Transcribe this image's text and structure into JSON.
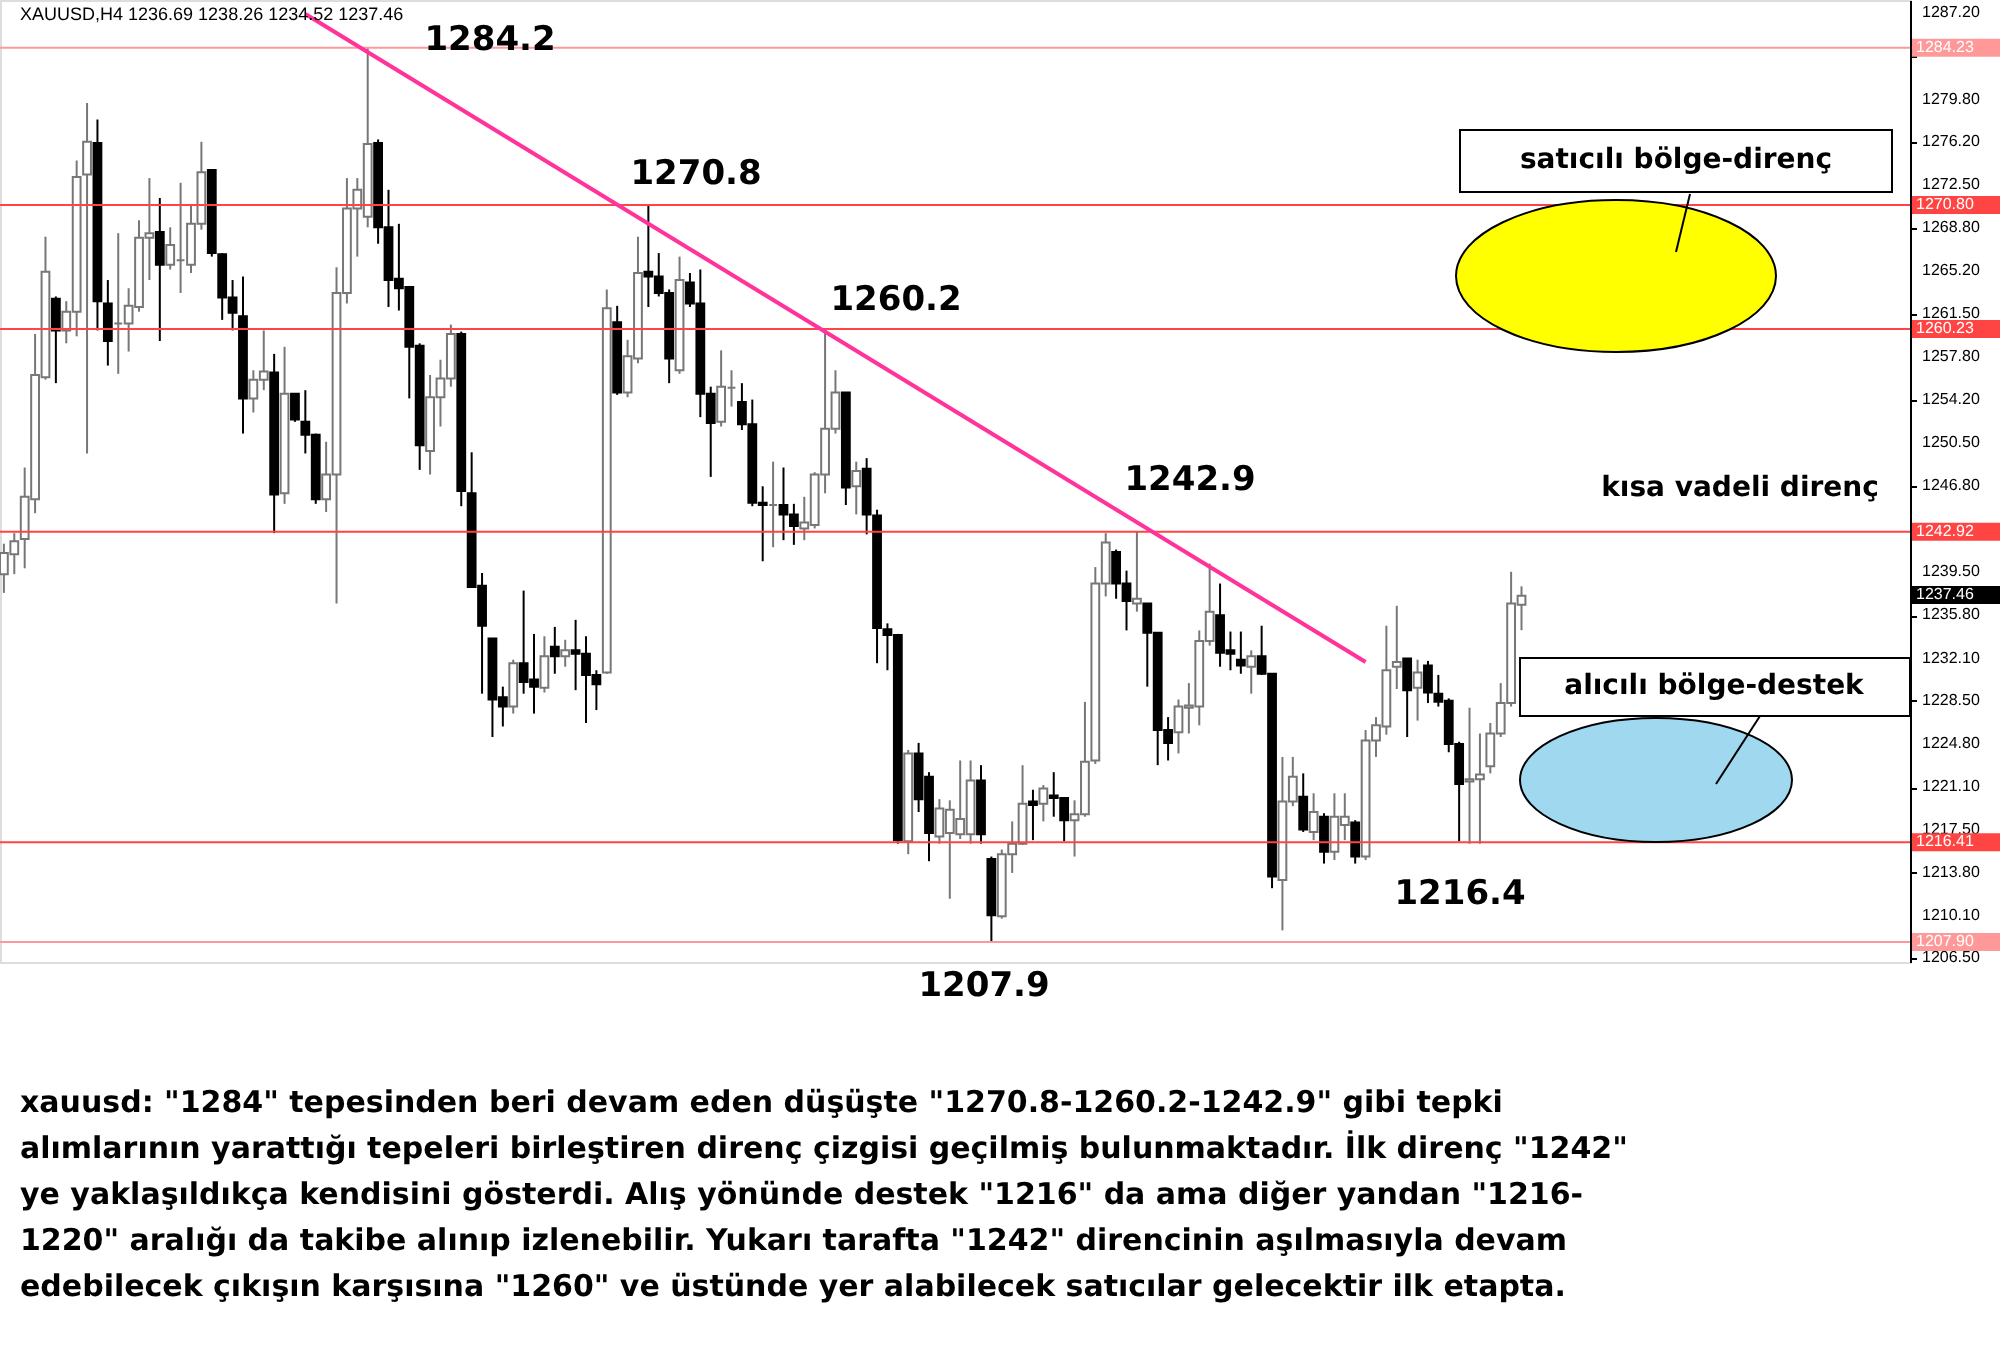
{
  "chart_data": {
    "type": "candlestick",
    "title": "XAUUSD,H4  1236.69 1238.26 1234.52 1237.46",
    "categories": [
      null,
      null,
      null,
      null,
      null,
      null,
      null,
      null,
      null,
      null,
      null,
      null,
      null,
      null,
      null,
      null,
      null,
      null,
      null,
      null,
      null,
      null,
      null,
      null,
      null,
      null,
      null,
      null,
      null,
      null,
      null,
      null,
      null,
      null,
      null,
      null,
      null,
      null,
      null,
      null,
      null,
      null,
      null,
      null,
      null,
      null,
      null,
      null,
      null,
      null,
      null,
      null,
      null,
      null,
      null,
      null,
      null,
      null,
      null,
      null,
      null,
      null,
      null,
      null,
      null,
      null,
      null,
      null,
      null,
      null,
      null,
      null,
      null,
      null,
      null,
      null,
      null,
      null,
      null,
      null,
      null,
      null,
      null,
      null,
      null,
      null,
      null,
      null,
      null,
      null,
      null,
      null,
      null,
      null,
      null,
      null,
      null,
      null,
      null,
      null,
      null,
      null,
      null,
      null,
      null,
      null,
      null,
      null,
      null,
      null,
      null,
      null,
      null,
      null,
      null,
      null,
      null,
      null,
      null,
      null,
      null,
      null,
      null,
      null,
      null,
      null,
      null,
      null,
      null,
      null,
      null,
      null,
      null,
      null,
      null,
      null,
      null,
      null,
      null,
      null,
      null,
      null,
      null,
      null,
      null,
      null,
      null,
      null,
      null,
      null,
      null,
      null,
      null,
      null,
      null,
      null,
      null,
      null,
      null,
      null,
      null,
      null,
      null,
      null,
      null,
      null,
      null,
      null,
      null,
      null,
      null,
      null,
      null,
      null,
      null,
      null,
      null,
      null,
      null,
      null,
      null,
      null,
      null,
      null
    ],
    "ohlc": [
      [
        1239.3,
        1241.9,
        1237.7,
        1241.1
      ],
      [
        1241.0,
        1242.8,
        1239.3,
        1242.1
      ],
      [
        1242.3,
        1248.4,
        1239.8,
        1245.9
      ],
      [
        1245.7,
        1259.8,
        1244.5,
        1256.3
      ],
      [
        1256.1,
        1268.1,
        1255.9,
        1265.1
      ],
      [
        1262.8,
        1263.0,
        1255.6,
        1260.1
      ],
      [
        1260.1,
        1262.6,
        1259.0,
        1261.7
      ],
      [
        1261.7,
        1274.6,
        1259.6,
        1273.2
      ],
      [
        1273.4,
        1279.5,
        1249.6,
        1276.2
      ],
      [
        1276.1,
        1278.1,
        1260.1,
        1262.6
      ],
      [
        1262.4,
        1264.4,
        1257.1,
        1259.2
      ],
      [
        1260.7,
        1268.4,
        1256.4,
        1260.7
      ],
      [
        1260.7,
        1263.7,
        1258.3,
        1262.2
      ],
      [
        1262.1,
        1269.5,
        1261.7,
        1268.0
      ],
      [
        1268.0,
        1273.1,
        1264.4,
        1268.4
      ],
      [
        1268.5,
        1271.4,
        1259.2,
        1265.7
      ],
      [
        1265.7,
        1268.9,
        1265.3,
        1267.4
      ],
      [
        1266.1,
        1272.7,
        1263.3,
        1266.1
      ],
      [
        1265.7,
        1270.9,
        1265.0,
        1269.2
      ],
      [
        1269.2,
        1276.2,
        1268.7,
        1273.6
      ],
      [
        1273.8,
        1273.8,
        1266.4,
        1266.7
      ],
      [
        1266.6,
        1266.7,
        1261.0,
        1262.9
      ],
      [
        1262.9,
        1264.4,
        1260.1,
        1261.6
      ],
      [
        1261.3,
        1264.7,
        1251.3,
        1254.3
      ],
      [
        1254.3,
        1256.7,
        1253.1,
        1255.9
      ],
      [
        1255.9,
        1260.1,
        1255.0,
        1256.6
      ],
      [
        1256.5,
        1258.1,
        1242.8,
        1246.1
      ],
      [
        1246.2,
        1258.7,
        1245.3,
        1254.7
      ],
      [
        1254.7,
        1254.7,
        1252.3,
        1252.5
      ],
      [
        1252.3,
        1255.0,
        1249.6,
        1251.2
      ],
      [
        1251.2,
        1251.3,
        1245.3,
        1245.7
      ],
      [
        1245.7,
        1250.6,
        1244.6,
        1247.8
      ],
      [
        1247.8,
        1265.5,
        1236.8,
        1263.3
      ],
      [
        1263.3,
        1273.1,
        1262.4,
        1270.5
      ],
      [
        1270.5,
        1273.1,
        1266.4,
        1272.1
      ],
      [
        1269.8,
        1284.2,
        1268.9,
        1276.0
      ],
      [
        1276.1,
        1276.4,
        1267.5,
        1268.9
      ],
      [
        1268.9,
        1272.1,
        1262.1,
        1264.4
      ],
      [
        1264.5,
        1269.2,
        1261.8,
        1263.7
      ],
      [
        1263.8,
        1263.9,
        1254.3,
        1258.7
      ],
      [
        1258.8,
        1259.0,
        1248.2,
        1250.3
      ],
      [
        1249.8,
        1256.3,
        1247.8,
        1254.4
      ],
      [
        1254.4,
        1257.6,
        1251.9,
        1256.0
      ],
      [
        1256.0,
        1260.6,
        1255.3,
        1259.8
      ],
      [
        1259.8,
        1260.0,
        1245.1,
        1246.4
      ],
      [
        1246.2,
        1249.7,
        1238.2,
        1238.2
      ],
      [
        1238.3,
        1239.4,
        1229.1,
        1234.9
      ],
      [
        1233.8,
        1233.8,
        1225.4,
        1228.6
      ],
      [
        1228.8,
        1229.7,
        1226.3,
        1228.0
      ],
      [
        1228.0,
        1232.0,
        1227.4,
        1231.7
      ],
      [
        1231.7,
        1237.9,
        1229.1,
        1230.1
      ],
      [
        1230.3,
        1234.2,
        1227.4,
        1229.7
      ],
      [
        1229.6,
        1234.0,
        1229.2,
        1232.3
      ],
      [
        1233.1,
        1234.8,
        1230.8,
        1232.3
      ],
      [
        1232.3,
        1233.7,
        1231.4,
        1232.8
      ],
      [
        1232.8,
        1235.4,
        1229.4,
        1232.5
      ],
      [
        1232.5,
        1234.0,
        1226.6,
        1230.7
      ],
      [
        1230.7,
        1231.1,
        1227.7,
        1229.9
      ],
      [
        1230.9,
        1263.6,
        1230.8,
        1262.0
      ],
      [
        1260.8,
        1262.2,
        1254.6,
        1254.8
      ],
      [
        1254.8,
        1259.3,
        1254.4,
        1257.9
      ],
      [
        1257.7,
        1268.1,
        1257.3,
        1265.0
      ],
      [
        1265.1,
        1270.8,
        1262.1,
        1264.7
      ],
      [
        1264.7,
        1266.7,
        1263.0,
        1263.3
      ],
      [
        1263.3,
        1263.6,
        1255.6,
        1257.7
      ],
      [
        1256.7,
        1266.4,
        1256.4,
        1264.4
      ],
      [
        1264.2,
        1265.0,
        1262.1,
        1262.4
      ],
      [
        1262.4,
        1265.3,
        1252.7,
        1254.7
      ],
      [
        1254.7,
        1255.3,
        1247.6,
        1252.2
      ],
      [
        1252.3,
        1258.4,
        1251.9,
        1255.3
      ],
      [
        1255.2,
        1256.7,
        1253.6,
        1255.2
      ],
      [
        1254.0,
        1255.6,
        1251.6,
        1252.1
      ],
      [
        1252.1,
        1254.2,
        1245.1,
        1245.4
      ],
      [
        1245.4,
        1246.8,
        1240.4,
        1245.2
      ],
      [
        1245.2,
        1248.9,
        1241.6,
        1245.2
      ],
      [
        1245.2,
        1248.4,
        1242.2,
        1244.4
      ],
      [
        1244.4,
        1245.3,
        1241.8,
        1243.4
      ],
      [
        1243.2,
        1245.9,
        1242.2,
        1243.7
      ],
      [
        1243.5,
        1248.0,
        1243.2,
        1247.8
      ],
      [
        1247.8,
        1260.2,
        1246.2,
        1251.7
      ],
      [
        1251.7,
        1256.7,
        1251.3,
        1254.8
      ],
      [
        1254.8,
        1254.8,
        1245.2,
        1246.7
      ],
      [
        1246.8,
        1248.9,
        1244.4,
        1248.1
      ],
      [
        1248.3,
        1249.2,
        1242.7,
        1244.4
      ],
      [
        1244.3,
        1244.8,
        1231.7,
        1234.7
      ],
      [
        1234.6,
        1235.1,
        1231.1,
        1234.1
      ],
      [
        1234.1,
        1234.2,
        1216.3,
        1216.6
      ],
      [
        1216.5,
        1224.3,
        1215.4,
        1224.0
      ],
      [
        1224.0,
        1224.9,
        1219.0,
        1220.1
      ],
      [
        1222.0,
        1222.4,
        1214.8,
        1217.2
      ],
      [
        1216.9,
        1220.1,
        1216.3,
        1219.3
      ],
      [
        1217.2,
        1220.0,
        1211.6,
        1219.2
      ],
      [
        1217.1,
        1223.4,
        1216.7,
        1218.4
      ],
      [
        1217.1,
        1223.4,
        1216.3,
        1221.7
      ],
      [
        1221.7,
        1223.0,
        1216.3,
        1217.1
      ],
      [
        1215.0,
        1215.2,
        1207.9,
        1210.2
      ],
      [
        1210.1,
        1215.8,
        1209.9,
        1215.4
      ],
      [
        1215.4,
        1218.2,
        1213.8,
        1216.3
      ],
      [
        1216.3,
        1223.0,
        1216.2,
        1219.7
      ],
      [
        1219.9,
        1220.9,
        1216.6,
        1219.6
      ],
      [
        1219.7,
        1221.3,
        1218.2,
        1221.0
      ],
      [
        1220.4,
        1222.4,
        1218.6,
        1220.2
      ],
      [
        1220.2,
        1220.2,
        1216.5,
        1218.3
      ],
      [
        1218.3,
        1220.0,
        1215.2,
        1218.8
      ],
      [
        1218.8,
        1228.4,
        1218.6,
        1223.3
      ],
      [
        1223.4,
        1239.9,
        1223.1,
        1238.5
      ],
      [
        1238.5,
        1242.8,
        1237.4,
        1242.0
      ],
      [
        1241.2,
        1241.4,
        1237.2,
        1238.5
      ],
      [
        1238.5,
        1239.6,
        1234.5,
        1237.0
      ],
      [
        1236.8,
        1242.9,
        1236.1,
        1237.2
      ],
      [
        1236.8,
        1236.8,
        1229.7,
        1234.3
      ],
      [
        1234.3,
        1234.3,
        1223.0,
        1226.0
      ],
      [
        1226.0,
        1227.1,
        1223.4,
        1224.9
      ],
      [
        1225.8,
        1228.6,
        1224.0,
        1228.0
      ],
      [
        1227.9,
        1230.0,
        1225.7,
        1228.1
      ],
      [
        1228.0,
        1234.5,
        1226.4,
        1233.6
      ],
      [
        1233.6,
        1240.2,
        1233.2,
        1236.1
      ],
      [
        1235.8,
        1238.5,
        1231.4,
        1232.6
      ],
      [
        1232.8,
        1234.4,
        1231.1,
        1232.5
      ],
      [
        1232.0,
        1234.4,
        1230.8,
        1231.5
      ],
      [
        1231.4,
        1232.8,
        1229.1,
        1232.3
      ],
      [
        1232.3,
        1234.9,
        1230.7,
        1230.8
      ],
      [
        1230.8,
        1230.8,
        1212.5,
        1213.5
      ],
      [
        1213.2,
        1223.7,
        1208.9,
        1219.9
      ],
      [
        1219.9,
        1223.7,
        1219.5,
        1222.0
      ],
      [
        1220.3,
        1222.3,
        1217.3,
        1217.5
      ],
      [
        1217.3,
        1220.6,
        1216.6,
        1219.0
      ],
      [
        1218.6,
        1218.9,
        1214.6,
        1215.6
      ],
      [
        1215.6,
        1220.6,
        1214.9,
        1218.6
      ],
      [
        1217.9,
        1220.6,
        1216.6,
        1218.6
      ],
      [
        1218.1,
        1218.3,
        1214.6,
        1215.2
      ],
      [
        1215.2,
        1226.0,
        1214.9,
        1225.1
      ],
      [
        1225.1,
        1227.1,
        1223.7,
        1226.4
      ],
      [
        1226.3,
        1234.9,
        1225.6,
        1231.1
      ],
      [
        1231.4,
        1236.6,
        1229.5,
        1231.8
      ],
      [
        1232.1,
        1232.1,
        1225.4,
        1229.4
      ],
      [
        1229.6,
        1232.0,
        1226.8,
        1230.9
      ],
      [
        1231.5,
        1231.9,
        1228.3,
        1229.2
      ],
      [
        1229.1,
        1230.7,
        1228.0,
        1228.4
      ],
      [
        1228.5,
        1228.7,
        1224.1,
        1224.8
      ],
      [
        1224.8,
        1225.0,
        1216.5,
        1221.4
      ],
      [
        1221.6,
        1227.9,
        1216.3,
        1221.8
      ],
      [
        1221.8,
        1225.7,
        1216.3,
        1222.2
      ],
      [
        1222.9,
        1226.6,
        1222.3,
        1225.7
      ],
      [
        1225.7,
        1230.0,
        1225.4,
        1228.3
      ],
      [
        1228.3,
        1239.5,
        1228.0,
        1236.8
      ],
      [
        1236.69,
        1238.26,
        1234.52,
        1237.46
      ],
      null,
      null,
      null,
      null,
      null,
      null,
      null,
      null,
      null,
      null,
      null,
      null,
      null,
      null,
      null,
      null,
      null,
      null,
      null,
      null,
      null,
      null,
      null,
      null,
      null,
      null,
      null,
      null,
      null,
      null,
      null,
      null,
      null,
      null,
      null,
      null,
      null
    ],
    "series": [
      {
        "type": "line",
        "values": [
          null,
          null,
          null,
          null,
          null,
          null,
          null,
          null,
          null,
          null,
          null,
          null,
          null,
          null,
          null,
          null,
          null,
          null,
          null,
          null,
          null,
          null,
          null,
          null,
          null,
          null,
          null,
          null,
          null,
          1287.1,
          null,
          null,
          null,
          null,
          null,
          null,
          null,
          null,
          null,
          null,
          null,
          null,
          null,
          null,
          null,
          null,
          null,
          null,
          null,
          null,
          null,
          null,
          null,
          null,
          null,
          null,
          null,
          null,
          null,
          null,
          null,
          null,
          null,
          null,
          null,
          null,
          null,
          null,
          null,
          null,
          null,
          null,
          null,
          null,
          null,
          null,
          null,
          null,
          null,
          null,
          null,
          null,
          null,
          null,
          null,
          null,
          null,
          null,
          null,
          null,
          null,
          null,
          null,
          null,
          null,
          null,
          null,
          null,
          null,
          null,
          null,
          null,
          null,
          null,
          null,
          null,
          null,
          null,
          null,
          null,
          null,
          null,
          null,
          null,
          null,
          null,
          null,
          null,
          null,
          null,
          null,
          null,
          null,
          null,
          null,
          null,
          null,
          null,
          null,
          null,
          null,
          1231.8,
          null,
          null,
          null,
          null,
          null,
          null,
          null,
          null,
          null,
          null,
          null,
          null,
          null,
          null,
          null,
          null,
          null,
          null,
          null,
          null,
          null,
          null,
          null,
          null,
          null,
          null,
          null,
          null,
          null,
          null,
          null,
          null,
          null,
          null,
          null,
          null,
          null,
          null,
          null,
          null,
          null,
          null,
          null,
          null,
          null,
          null,
          null,
          null,
          null,
          null,
          null,
          null
        ],
        "color": "#ff3399"
      }
    ],
    "ylim": [
      1206.2,
      1288.3
    ],
    "yticks": [
      {
        "value": 1287.2,
        "label": "1287.20"
      },
      {
        "value": 1283.5,
        "label": null
      },
      {
        "value": 1279.8,
        "label": "1279.80"
      },
      {
        "value": 1276.2,
        "label": "1276.20"
      },
      {
        "value": 1272.5,
        "label": "1272.50"
      },
      {
        "value": 1268.8,
        "label": "1268.80"
      },
      {
        "value": 1265.2,
        "label": "1265.20"
      },
      {
        "value": 1261.5,
        "label": "1261.50"
      },
      {
        "value": 1257.8,
        "label": "1257.80"
      },
      {
        "value": 1254.2,
        "label": "1254.20"
      },
      {
        "value": 1250.5,
        "label": "1250.50"
      },
      {
        "value": 1246.8,
        "label": "1246.80"
      },
      {
        "value": 1239.5,
        "label": "1239.50"
      },
      {
        "value": 1235.8,
        "label": "1235.80"
      },
      {
        "value": 1232.1,
        "label": "1232.10"
      },
      {
        "value": 1228.5,
        "label": "1228.50"
      },
      {
        "value": 1224.8,
        "label": "1224.80"
      },
      {
        "value": 1221.1,
        "label": "1221.10"
      },
      {
        "value": 1217.5,
        "label": "1217.50"
      },
      {
        "value": 1213.8,
        "label": "1213.80"
      },
      {
        "value": 1210.1,
        "label": "1210.10"
      },
      {
        "value": 1206.5,
        "label": "1206.50"
      }
    ],
    "ref_lines": [
      {
        "axis": "y",
        "value": 1284.23,
        "label": "1284.23",
        "color": "#ff9999"
      },
      {
        "axis": "y",
        "value": 1270.8,
        "label": "1270.80",
        "color": "#ff4444"
      },
      {
        "axis": "y",
        "value": 1260.23,
        "label": "1260.23",
        "color": "#ff4444"
      },
      {
        "axis": "y",
        "value": 1242.92,
        "label": "1242.92",
        "color": "#ff4444"
      },
      {
        "axis": "y",
        "value": 1216.41,
        "label": "1216.41",
        "color": "#ff4444"
      },
      {
        "axis": "y",
        "value": 1207.9,
        "label": "1207.90",
        "color": "#ff9999"
      }
    ],
    "annotations": [
      "1237.46",
      "1284.2",
      "1270.8",
      "1260.2",
      "1242.9",
      "1216.4",
      "1207.9",
      "satıcılı bölge-direnç",
      "kısa vadeli direnç",
      "alıcılı bölge-destek",
      "xauusd: \"1284\" tepesinden beri devam eden düşüşte \"1270.8-1260.2-1242.9\" gibi tepki\nalımlarının yarattığı tepeleri birleştiren direnç çizgisi geçilmiş bulunmaktadır. İlk direnç \"1242\"\nye yaklaşıldıkça kendisini gösterdi. Alış yönünde destek \"1216\" da ama diğer yandan \"1216-\n1220\" aralığı da takibe alınıp izlenebilir. Yukarı tarafta \"1242\" direncinin aşılmasıyla devam\nedebilecek çıkışın karşısına \"1260\" ve üstünde yer alabilecek satıcılar gelecektir ilk etapta."
    ]
  }
}
